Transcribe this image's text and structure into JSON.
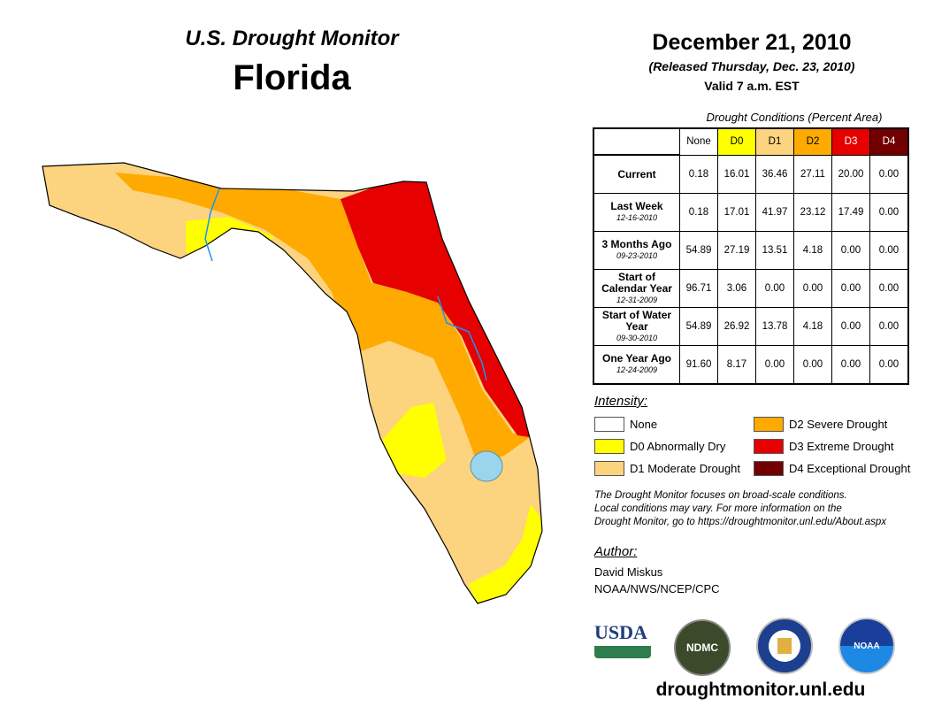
{
  "header": {
    "product": "U.S. Drought Monitor",
    "state": "Florida",
    "date": "December 21, 2010",
    "released": "(Released Thursday, Dec. 23, 2010)",
    "valid": "Valid 7 a.m. EST"
  },
  "table": {
    "caption": "Drought Conditions (Percent Area)",
    "columns": [
      "None",
      "D0",
      "D1",
      "D2",
      "D3",
      "D4"
    ],
    "rows": [
      {
        "label": "Current",
        "date": "",
        "values": [
          "0.18",
          "16.01",
          "36.46",
          "27.11",
          "20.00",
          "0.00"
        ]
      },
      {
        "label": "Last Week",
        "date": "12-16-2010",
        "values": [
          "0.18",
          "17.01",
          "41.97",
          "23.12",
          "17.49",
          "0.00"
        ]
      },
      {
        "label": "3 Months Ago",
        "date": "09-23-2010",
        "values": [
          "54.89",
          "27.19",
          "13.51",
          "4.18",
          "0.00",
          "0.00"
        ]
      },
      {
        "label": "Start of Calendar Year",
        "date": "12-31-2009",
        "values": [
          "96.71",
          "3.06",
          "0.00",
          "0.00",
          "0.00",
          "0.00"
        ]
      },
      {
        "label": "Start of Water Year",
        "date": "09-30-2010",
        "values": [
          "54.89",
          "26.92",
          "13.78",
          "4.18",
          "0.00",
          "0.00"
        ]
      },
      {
        "label": "One Year Ago",
        "date": "12-24-2009",
        "values": [
          "91.60",
          "8.17",
          "0.00",
          "0.00",
          "0.00",
          "0.00"
        ]
      }
    ]
  },
  "legend": {
    "title": "Intensity:",
    "items": [
      {
        "label": "None",
        "color": "#ffffff"
      },
      {
        "label": "D0 Abnormally Dry",
        "color": "#ffff00"
      },
      {
        "label": "D1 Moderate Drought",
        "color": "#fcd37f"
      },
      {
        "label": "D2 Severe Drought",
        "color": "#ffaa00"
      },
      {
        "label": "D3 Extreme Drought",
        "color": "#e60000"
      },
      {
        "label": "D4 Exceptional Drought",
        "color": "#730000"
      }
    ]
  },
  "note": [
    "The Drought Monitor focuses on broad-scale conditions.",
    "Local conditions may vary. For more information on the",
    "Drought Monitor, go to https://droughtmonitor.unl.edu/About.aspx"
  ],
  "author": {
    "title": "Author:",
    "name": "David Miskus",
    "org": "NOAA/NWS/NCEP/CPC"
  },
  "logos": {
    "usda": "USDA",
    "ndmc": "NDMC",
    "noaa": "NOAA"
  },
  "footer": {
    "url": "droughtmonitor.unl.edu"
  }
}
